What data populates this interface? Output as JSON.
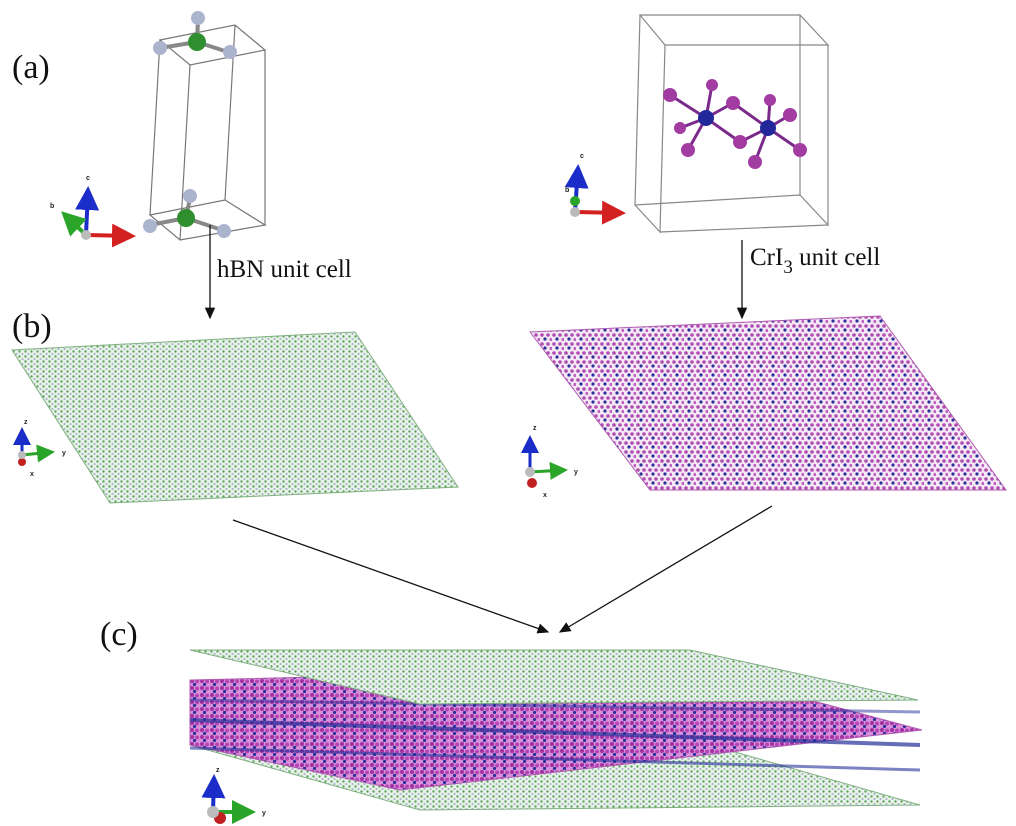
{
  "panels": {
    "a": "(a)",
    "b": "(b)",
    "c": "(c)"
  },
  "captions": {
    "hbn": "hBN unit cell",
    "cri3": {
      "prefix": "CrI",
      "subscript": "3",
      "suffix": " unit cell"
    }
  },
  "axes": {
    "hbn_cell": [
      "c",
      "b"
    ],
    "cri3_cell": [
      "c",
      "b"
    ],
    "hbn_sheet": [
      "z",
      "y",
      "x"
    ],
    "cri3_sheet": [
      "z",
      "y",
      "x"
    ],
    "stack": [
      "z",
      "y"
    ]
  }
}
